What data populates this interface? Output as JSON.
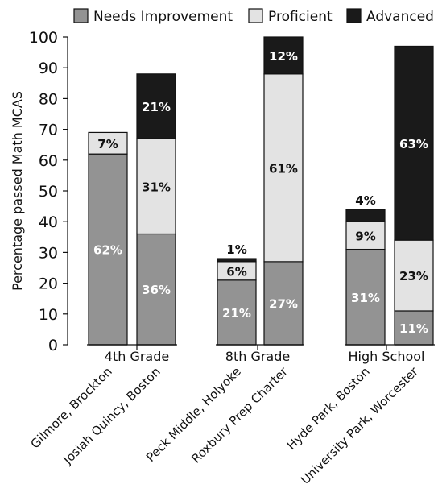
{
  "chart_data": {
    "type": "bar",
    "stacked": true,
    "ylabel": "Percentage passed Math MCAS",
    "ylim": [
      0,
      100
    ],
    "yticks": [
      0,
      10,
      20,
      30,
      40,
      50,
      60,
      70,
      80,
      90,
      100
    ],
    "grid": false,
    "legend_position": "top",
    "groups": [
      {
        "label": "4th Grade",
        "bars": [
          0,
          1
        ]
      },
      {
        "label": "8th Grade",
        "bars": [
          2,
          3
        ]
      },
      {
        "label": "High School",
        "bars": [
          4,
          5
        ]
      }
    ],
    "categories": [
      "Gilmore, Brockton",
      "Josiah Quincy, Boston",
      "Peck Middle, Holyoke",
      "Roxbury Prep Charter",
      "Hyde Park, Boston",
      "University Park, Worcester"
    ],
    "series": [
      {
        "name": "Needs Improvement",
        "color": "#939393",
        "label_color": "#ffffff",
        "values": [
          62,
          36,
          21,
          27,
          31,
          11
        ],
        "labels": [
          "62%",
          "36%",
          "21%",
          "27%",
          "31%",
          "11%"
        ]
      },
      {
        "name": "Proficient",
        "color": "#e3e3e3",
        "label_color": "#111111",
        "values": [
          7,
          31,
          6,
          61,
          9,
          23
        ],
        "labels": [
          "7%",
          "31%",
          "6%",
          "61%",
          "9%",
          "23%"
        ]
      },
      {
        "name": "Advanced",
        "color": "#1a1a1a",
        "label_color": "#ffffff",
        "values": [
          0,
          21,
          1,
          12,
          4,
          63
        ],
        "labels": [
          "",
          "21%",
          "1%",
          "12%",
          "4%",
          "63%"
        ]
      }
    ]
  }
}
